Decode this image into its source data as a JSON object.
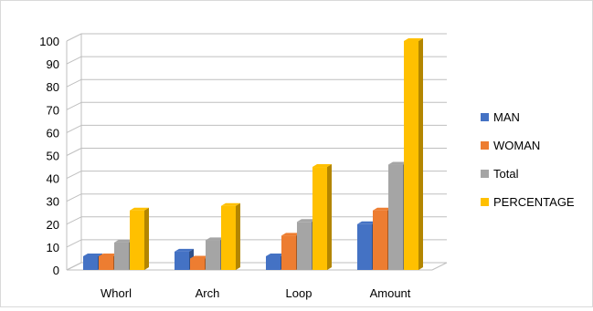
{
  "chart_data": {
    "type": "bar",
    "categories": [
      "Whorl",
      "Arch",
      "Loop",
      "Amount"
    ],
    "series": [
      {
        "name": "MAN",
        "values": [
          6,
          8,
          6,
          20
        ]
      },
      {
        "name": "WOMAN",
        "values": [
          6,
          5,
          15,
          26
        ]
      },
      {
        "name": "Total",
        "values": [
          12,
          13,
          21,
          46
        ]
      },
      {
        "name": "PERCENTAGE",
        "values": [
          26,
          28,
          45,
          100
        ]
      }
    ],
    "ylim": [
      0,
      100
    ],
    "yticks": [
      0,
      10,
      20,
      30,
      40,
      50,
      60,
      70,
      80,
      90,
      100
    ],
    "grid": true,
    "legend": "right",
    "three_d": true,
    "colors": {
      "MAN": "#4472c4",
      "WOMAN": "#ed7d31",
      "Total": "#a5a5a5",
      "PERCENTAGE": "#ffc000",
      "gridline": "#bfbfbf"
    }
  }
}
